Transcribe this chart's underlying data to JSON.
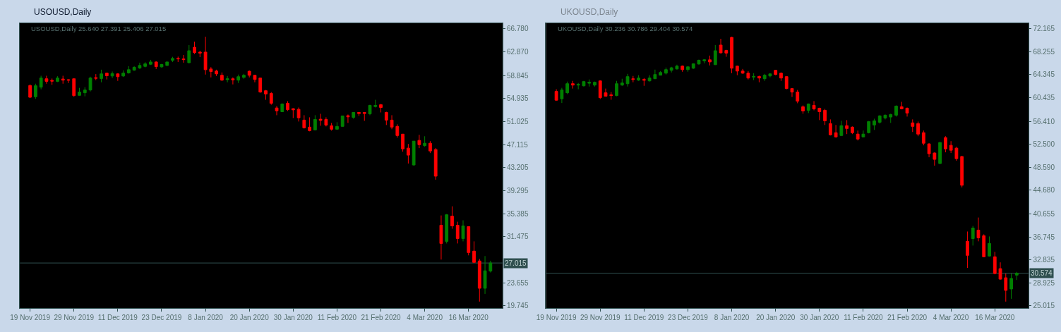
{
  "chart_data": [
    {
      "type": "candlestick",
      "title": "USOUSD,Daily",
      "subtitle": "USOUSD,Daily 25.640 27.391 25.406 27.015",
      "categories": [
        "19 Nov 2019",
        null,
        null,
        null,
        null,
        null,
        null,
        null,
        "29 Nov 2019",
        null,
        null,
        null,
        null,
        null,
        null,
        null,
        "11 Dec 2019",
        null,
        null,
        null,
        null,
        null,
        null,
        null,
        "23 Dec 2019",
        null,
        null,
        null,
        null,
        null,
        null,
        null,
        "8 Jan 2020",
        null,
        null,
        null,
        null,
        null,
        null,
        null,
        "20 Jan 2020",
        null,
        null,
        null,
        null,
        null,
        null,
        null,
        "30 Jan 2020",
        null,
        null,
        null,
        null,
        null,
        null,
        null,
        "11 Feb 2020",
        null,
        null,
        null,
        null,
        null,
        null,
        null,
        "21 Feb 2020",
        null,
        null,
        null,
        null,
        null,
        null,
        null,
        "4 Mar 2020",
        null,
        null,
        null,
        null,
        null,
        null,
        null,
        "16 Mar 2020",
        null,
        null,
        null,
        null
      ],
      "ohlc": [
        [
          57.15,
          57.34,
          55.04,
          55.16
        ],
        [
          55.24,
          57.46,
          54.89,
          57.11
        ],
        [
          56.87,
          58.81,
          56.51,
          58.42
        ],
        [
          58.3,
          58.81,
          57.46,
          57.86
        ],
        [
          58.02,
          58.34,
          57.27,
          57.9
        ],
        [
          57.86,
          58.73,
          57.74,
          58.42
        ],
        [
          58.26,
          58.81,
          57.46,
          58.06
        ],
        [
          58.14,
          58.22,
          57.58,
          58.06
        ],
        [
          58.3,
          58.34,
          55.24,
          55.44
        ],
        [
          55.48,
          56.75,
          55.44,
          56.04
        ],
        [
          55.92,
          56.87,
          55.32,
          56.39
        ],
        [
          56.39,
          58.65,
          56.15,
          58.42
        ],
        [
          58.49,
          59.09,
          58.06,
          58.38
        ],
        [
          58.34,
          59.84,
          57.7,
          59.13
        ],
        [
          59.25,
          59.33,
          58.18,
          58.81
        ],
        [
          58.77,
          59.53,
          58.42,
          59.17
        ],
        [
          59.13,
          59.25,
          57.94,
          58.65
        ],
        [
          58.77,
          59.72,
          58.61,
          59.25
        ],
        [
          59.29,
          60.44,
          59.17,
          59.84
        ],
        [
          59.76,
          60.44,
          59.65,
          60.24
        ],
        [
          60.12,
          61.03,
          59.96,
          60.56
        ],
        [
          60.4,
          61.11,
          60.24,
          60.83
        ],
        [
          60.76,
          61.51,
          60.64,
          61.15
        ],
        [
          61.15,
          61.27,
          59.96,
          60.36
        ],
        [
          60.32,
          60.83,
          60.16,
          60.72
        ],
        [
          60.56,
          61.19,
          60.44,
          61.15
        ],
        [
          61.43,
          62.02,
          61.15,
          61.75
        ],
        [
          61.75,
          62.06,
          61.15,
          61.67
        ],
        [
          61.67,
          62.34,
          61.03,
          61.55
        ],
        [
          61.03,
          64.01,
          60.91,
          63.06
        ],
        [
          63.65,
          64.6,
          62.5,
          62.74
        ],
        [
          62.82,
          63.06,
          61.98,
          62.66
        ],
        [
          62.82,
          65.44,
          59.01,
          59.84
        ],
        [
          59.96,
          60.28,
          58.53,
          59.53
        ],
        [
          59.61,
          59.84,
          58.77,
          59.13
        ],
        [
          58.89,
          59.37,
          57.94,
          58.06
        ],
        [
          58.14,
          58.77,
          57.7,
          58.3
        ],
        [
          58.3,
          58.53,
          57.34,
          58.1
        ],
        [
          58.06,
          59.01,
          57.58,
          58.65
        ],
        [
          58.53,
          59.13,
          58.3,
          58.89
        ],
        [
          59.57,
          59.72,
          58.53,
          58.89
        ],
        [
          58.89,
          58.93,
          57.7,
          58.18
        ],
        [
          58.42,
          58.45,
          55.92,
          56.04
        ],
        [
          56.27,
          56.39,
          54.73,
          55.72
        ],
        [
          55.8,
          56.04,
          53.89,
          54.13
        ],
        [
          53.34,
          53.66,
          52.11,
          52.86
        ],
        [
          52.7,
          54.13,
          52.68,
          54.01
        ],
        [
          54.13,
          54.49,
          52.82,
          53.06
        ],
        [
          53.22,
          53.3,
          51.63,
          53.02
        ],
        [
          53.1,
          53.42,
          51.04,
          51.67
        ],
        [
          51.28,
          52.11,
          49.85,
          49.97
        ],
        [
          50.09,
          51.75,
          49.37,
          49.49
        ],
        [
          49.61,
          52.11,
          49.58,
          51.39
        ],
        [
          51.43,
          52.35,
          50.32,
          51.24
        ],
        [
          51.39,
          51.75,
          50.21,
          50.44
        ],
        [
          50.32,
          50.8,
          49.49,
          49.73
        ],
        [
          49.73,
          50.92,
          49.7,
          50.21
        ],
        [
          50.21,
          52.02,
          50.18,
          51.99
        ],
        [
          52.03,
          52.23,
          50.8,
          51.83
        ],
        [
          51.75,
          52.6,
          51.51,
          52.58
        ],
        [
          52.58,
          52.6,
          51.99,
          52.39
        ],
        [
          52.58,
          52.6,
          51.16,
          52.39
        ],
        [
          52.35,
          53.89,
          52.11,
          53.77
        ],
        [
          53.58,
          54.73,
          53.42,
          53.77
        ],
        [
          53.89,
          54.01,
          52.58,
          53.42
        ],
        [
          52.58,
          52.7,
          50.44,
          51.28
        ],
        [
          51.28,
          52.11,
          49.73,
          50.09
        ],
        [
          50.21,
          50.56,
          48.3,
          48.66
        ],
        [
          48.9,
          48.93,
          45.92,
          46.4
        ],
        [
          46.52,
          47.23,
          43.9,
          45.33
        ],
        [
          43.66,
          47.73,
          43.54,
          47.71
        ],
        [
          47.83,
          48.78,
          46.52,
          47.11
        ],
        [
          46.95,
          48.54,
          46.75,
          47.35
        ],
        [
          47.35,
          47.71,
          45.68,
          46.04
        ],
        [
          46.28,
          46.52,
          41.16,
          41.76
        ],
        [
          33.43,
          35.09,
          27.6,
          30.33
        ],
        [
          30.69,
          35.33,
          30.33,
          35.21
        ],
        [
          34.97,
          36.64,
          32.83,
          33.31
        ],
        [
          33.43,
          34.02,
          30.33,
          31.17
        ],
        [
          31.17,
          34.26,
          30.69,
          33.31
        ],
        [
          33.19,
          33.21,
          28.31,
          28.79
        ],
        [
          29.03,
          30.69,
          27.0,
          27.12
        ],
        [
          27.36,
          27.72,
          20.46,
          22.72
        ],
        [
          22.72,
          28.19,
          21.77,
          25.69
        ],
        [
          25.64,
          27.391,
          25.406,
          27.015
        ]
      ],
      "colors": [
        "#ff0000",
        "#008000",
        "#008000",
        "#ff0000",
        "#ff0000",
        "#008000",
        "#ff0000",
        "#ff0000",
        "#ff0000",
        "#008000",
        "#008000",
        "#008000",
        "#ff0000",
        "#008000",
        "#ff0000",
        "#008000",
        "#ff0000",
        "#008000",
        "#008000",
        "#008000",
        "#008000",
        "#008000",
        "#008000",
        "#ff0000",
        "#008000",
        "#008000",
        "#008000",
        "#ff0000",
        "#ff0000",
        "#008000",
        "#ff0000",
        "#ff0000",
        "#ff0000",
        "#ff0000",
        "#ff0000",
        "#ff0000",
        "#008000",
        "#ff0000",
        "#008000",
        "#008000",
        "#ff0000",
        "#ff0000",
        "#ff0000",
        "#ff0000",
        "#ff0000",
        "#ff0000",
        "#008000",
        "#ff0000",
        "#ff0000",
        "#ff0000",
        "#ff0000",
        "#ff0000",
        "#008000",
        "#ff0000",
        "#ff0000",
        "#ff0000",
        "#008000",
        "#008000",
        "#ff0000",
        "#008000",
        "#ff0000",
        "#ff0000",
        "#008000",
        "#008000",
        "#ff0000",
        "#ff0000",
        "#ff0000",
        "#ff0000",
        "#ff0000",
        "#ff0000",
        "#008000",
        "#ff0000",
        "#008000",
        "#ff0000",
        "#ff0000",
        "#ff0000",
        "#008000",
        "#ff0000",
        "#ff0000",
        "#008000",
        "#ff0000",
        "#ff0000",
        "#ff0000",
        "#008000",
        "#008000"
      ],
      "ylim": [
        19.35,
        67.74
      ],
      "yticks": [
        {
          "value": 66.78,
          "label": "66.780"
        },
        {
          "value": 62.87,
          "label": "62.870"
        },
        {
          "value": 58.845,
          "label": "58.845"
        },
        {
          "value": 54.935,
          "label": "54.935"
        },
        {
          "value": 51.025,
          "label": "51.025"
        },
        {
          "value": 47.115,
          "label": "47.115"
        },
        {
          "value": 43.205,
          "label": "43.205"
        },
        {
          "value": 39.295,
          "label": "39.295"
        },
        {
          "value": 35.385,
          "label": "35.385"
        },
        {
          "value": 31.475,
          "label": "31.475"
        },
        {
          "value": 23.655,
          "label": "23.655"
        },
        {
          "value": 19.745,
          "label": "19.745"
        }
      ],
      "ref_lines": [
        {
          "axis": "y",
          "value": 27.015,
          "label": "27.015",
          "color": "#2f4f4f"
        }
      ]
    },
    {
      "type": "candlestick",
      "title": "UKOUSD,Daily",
      "subtitle": "UKOUSD,Daily 30.236 30.786 29.404 30.574",
      "categories": [
        "19 Nov 2019",
        null,
        null,
        null,
        null,
        null,
        null,
        null,
        "29 Nov 2019",
        null,
        null,
        null,
        null,
        null,
        null,
        null,
        "11 Dec 2019",
        null,
        null,
        null,
        null,
        null,
        null,
        null,
        "23 Dec 2019",
        null,
        null,
        null,
        null,
        null,
        null,
        null,
        "8 Jan 2020",
        null,
        null,
        null,
        null,
        null,
        null,
        null,
        "20 Jan 2020",
        null,
        null,
        null,
        null,
        null,
        null,
        null,
        "30 Jan 2020",
        null,
        null,
        null,
        null,
        null,
        null,
        null,
        "11 Feb 2020",
        null,
        null,
        null,
        null,
        null,
        null,
        null,
        "21 Feb 2020",
        null,
        null,
        null,
        null,
        null,
        null,
        null,
        "4 Mar 2020",
        null,
        null,
        null,
        null,
        null,
        null,
        null,
        "16 Mar 2020",
        null,
        null,
        null,
        null
      ],
      "ohlc": [
        [
          61.51,
          61.87,
          59.93,
          60.01
        ],
        [
          60.25,
          62.11,
          59.53,
          61.75
        ],
        [
          61.27,
          63.18,
          61.04,
          62.82
        ],
        [
          62.82,
          63.3,
          61.99,
          62.58
        ],
        [
          62.58,
          62.94,
          61.87,
          62.7
        ],
        [
          62.46,
          63.3,
          62.34,
          63.18
        ],
        [
          62.9,
          63.54,
          62.34,
          63.06
        ],
        [
          62.58,
          63.18,
          62.34,
          63.06
        ],
        [
          63.3,
          63.38,
          60.21,
          60.44
        ],
        [
          61.27,
          61.99,
          60.64,
          60.68
        ],
        [
          60.92,
          61.39,
          60.09,
          60.8
        ],
        [
          60.8,
          63.3,
          60.68,
          62.82
        ],
        [
          62.58,
          63.66,
          62.46,
          62.94
        ],
        [
          62.82,
          64.49,
          62.34,
          64.02
        ],
        [
          63.66,
          64.14,
          63.06,
          63.54
        ],
        [
          63.42,
          64.26,
          63.3,
          63.78
        ],
        [
          63.54,
          63.78,
          62.46,
          63.42
        ],
        [
          63.3,
          64.26,
          63.18,
          63.78
        ],
        [
          63.66,
          65.21,
          63.62,
          64.38
        ],
        [
          64.26,
          64.97,
          64.22,
          64.73
        ],
        [
          64.61,
          65.57,
          64.38,
          65.21
        ],
        [
          65.09,
          65.69,
          64.73,
          65.53
        ],
        [
          65.33,
          66.05,
          65.21,
          65.81
        ],
        [
          65.81,
          65.93,
          64.85,
          65.21
        ],
        [
          65.21,
          65.77,
          64.85,
          65.69
        ],
        [
          65.45,
          66.29,
          65.33,
          66.21
        ],
        [
          66.17,
          66.92,
          66.05,
          66.8
        ],
        [
          66.72,
          67.0,
          66.29,
          66.88
        ],
        [
          66.88,
          67.6,
          65.93,
          66.52
        ],
        [
          66.05,
          69.39,
          66.01,
          68.43
        ],
        [
          69.39,
          70.46,
          67.95,
          68.07
        ],
        [
          68.47,
          68.59,
          67.4,
          68.03
        ],
        [
          70.7,
          70.82,
          64.61,
          65.45
        ],
        [
          65.81,
          65.89,
          64.26,
          64.97
        ],
        [
          64.97,
          65.33,
          64.49,
          64.61
        ],
        [
          64.61,
          64.97,
          63.54,
          63.78
        ],
        [
          63.94,
          64.61,
          63.42,
          64.06
        ],
        [
          64.06,
          64.18,
          63.06,
          63.78
        ],
        [
          63.66,
          64.49,
          63.3,
          64.26
        ],
        [
          64.14,
          64.61,
          63.9,
          64.49
        ],
        [
          65.09,
          65.17,
          64.26,
          64.38
        ],
        [
          64.61,
          64.73,
          63.3,
          63.78
        ],
        [
          64.02,
          64.1,
          61.87,
          61.99
        ],
        [
          61.99,
          62.07,
          60.56,
          61.39
        ],
        [
          61.39,
          61.75,
          59.49,
          59.85
        ],
        [
          58.89,
          59.13,
          57.7,
          58.18
        ],
        [
          58.29,
          59.45,
          57.82,
          59.37
        ],
        [
          59.13,
          59.85,
          58.29,
          58.53
        ],
        [
          58.65,
          58.73,
          56.62,
          58.05
        ],
        [
          58.29,
          58.53,
          55.79,
          56.5
        ],
        [
          56.03,
          56.74,
          54.0,
          54.12
        ],
        [
          54.48,
          55.79,
          53.64,
          53.76
        ],
        [
          54.0,
          56.5,
          53.92,
          55.67
        ],
        [
          55.67,
          56.62,
          54.24,
          55.19
        ],
        [
          55.43,
          55.55,
          54.24,
          54.48
        ],
        [
          54.24,
          54.84,
          53.16,
          53.4
        ],
        [
          53.76,
          54.84,
          53.68,
          54.24
        ],
        [
          54.48,
          56.46,
          54.36,
          56.38
        ],
        [
          55.79,
          56.86,
          54.95,
          56.5
        ],
        [
          56.26,
          57.46,
          56.03,
          57.34
        ],
        [
          56.98,
          57.58,
          56.74,
          57.46
        ],
        [
          57.14,
          57.7,
          56.15,
          57.58
        ],
        [
          57.46,
          59.13,
          57.22,
          59.01
        ],
        [
          58.89,
          59.73,
          58.45,
          58.53
        ],
        [
          58.65,
          58.77,
          57.22,
          57.82
        ],
        [
          56.15,
          56.74,
          54.6,
          55.55
        ],
        [
          56.03,
          56.38,
          53.88,
          54.24
        ],
        [
          54.48,
          54.84,
          52.33,
          52.69
        ],
        [
          52.57,
          52.69,
          50.3,
          50.9
        ],
        [
          51.02,
          51.14,
          48.87,
          49.94
        ],
        [
          49.23,
          52.89,
          49.15,
          52.81
        ],
        [
          53.64,
          53.88,
          51.14,
          51.73
        ],
        [
          52.33,
          53.04,
          51.02,
          51.49
        ],
        [
          51.85,
          52.09,
          49.71,
          50.06
        ],
        [
          50.42,
          50.54,
          45.17,
          45.53
        ],
        [
          35.99,
          37.66,
          31.46,
          33.6
        ],
        [
          36.46,
          38.61,
          35.27,
          38.25
        ],
        [
          37.9,
          40.04,
          35.99,
          36.58
        ],
        [
          36.94,
          37.18,
          33.28,
          33.36
        ],
        [
          33.48,
          36.82,
          33.4,
          35.63
        ],
        [
          33.36,
          34.2,
          30.38,
          30.5
        ],
        [
          31.34,
          32.41,
          29.47,
          29.55
        ],
        [
          29.79,
          30.5,
          25.73,
          27.64
        ],
        [
          27.88,
          30.5,
          26.21,
          29.67
        ],
        [
          30.236,
          30.786,
          29.404,
          30.574
        ]
      ],
      "colors": [
        "#ff0000",
        "#008000",
        "#008000",
        "#ff0000",
        "#008000",
        "#008000",
        "#008000",
        "#008000",
        "#ff0000",
        "#ff0000",
        "#ff0000",
        "#008000",
        "#008000",
        "#008000",
        "#ff0000",
        "#008000",
        "#ff0000",
        "#008000",
        "#008000",
        "#008000",
        "#008000",
        "#008000",
        "#008000",
        "#ff0000",
        "#008000",
        "#008000",
        "#008000",
        "#008000",
        "#ff0000",
        "#008000",
        "#ff0000",
        "#ff0000",
        "#ff0000",
        "#ff0000",
        "#ff0000",
        "#ff0000",
        "#008000",
        "#ff0000",
        "#008000",
        "#008000",
        "#ff0000",
        "#ff0000",
        "#ff0000",
        "#ff0000",
        "#ff0000",
        "#ff0000",
        "#008000",
        "#ff0000",
        "#ff0000",
        "#ff0000",
        "#ff0000",
        "#ff0000",
        "#008000",
        "#ff0000",
        "#ff0000",
        "#ff0000",
        "#008000",
        "#008000",
        "#008000",
        "#008000",
        "#008000",
        "#008000",
        "#008000",
        "#ff0000",
        "#ff0000",
        "#ff0000",
        "#ff0000",
        "#ff0000",
        "#ff0000",
        "#ff0000",
        "#008000",
        "#ff0000",
        "#ff0000",
        "#ff0000",
        "#ff0000",
        "#ff0000",
        "#008000",
        "#ff0000",
        "#ff0000",
        "#008000",
        "#ff0000",
        "#ff0000",
        "#ff0000",
        "#008000",
        "#008000"
      ],
      "ylim": [
        24.62,
        73.12
      ],
      "yticks": [
        {
          "value": 72.165,
          "label": "72.165"
        },
        {
          "value": 68.255,
          "label": "68.255"
        },
        {
          "value": 64.345,
          "label": "64.345"
        },
        {
          "value": 60.435,
          "label": "60.435"
        },
        {
          "value": 56.41,
          "label": "56.410"
        },
        {
          "value": 52.5,
          "label": "52.500"
        },
        {
          "value": 48.59,
          "label": "48.590"
        },
        {
          "value": 44.68,
          "label": "44.680"
        },
        {
          "value": 40.655,
          "label": "40.655"
        },
        {
          "value": 36.745,
          "label": "36.745"
        },
        {
          "value": 32.835,
          "label": "32.835"
        },
        {
          "value": 28.925,
          "label": "28.925"
        },
        {
          "value": 25.015,
          "label": "25.015"
        }
      ],
      "ref_lines": [
        {
          "axis": "y",
          "value": 30.574,
          "label": "30.574",
          "color": "#2f4f4f"
        }
      ]
    }
  ]
}
